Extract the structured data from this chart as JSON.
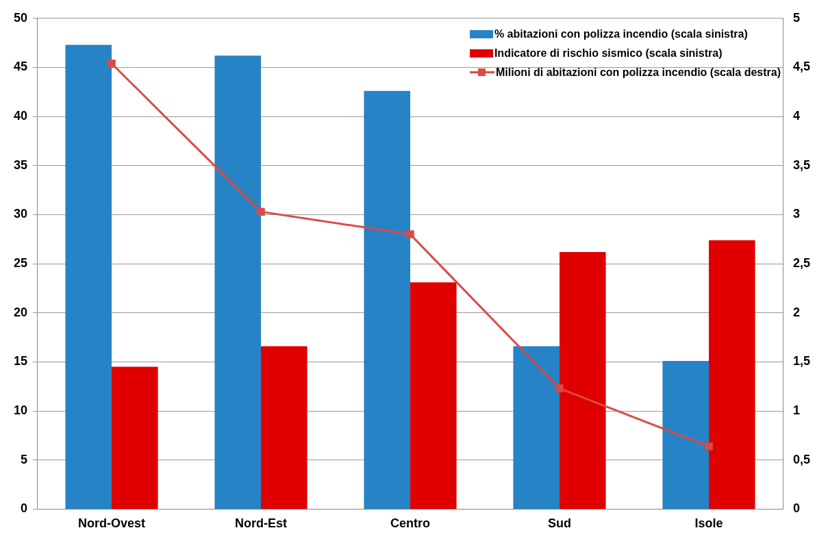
{
  "chart_data": {
    "type": "bar",
    "categories": [
      "Nord-Ovest",
      "Nord-Est",
      "Centro",
      "Sud",
      "Isole"
    ],
    "series": [
      {
        "name": "% abitazioni con polizza incendio (scala sinistra)",
        "color": "#2683c6",
        "values": [
          47.3,
          46.2,
          42.6,
          16.6,
          15.1
        ]
      },
      {
        "name": "Indicatore di rischio sismico (scala sinistra)",
        "color": "#e00000",
        "values": [
          14.5,
          16.6,
          23.1,
          26.2,
          27.4
        ]
      },
      {
        "name": "Milioni di abitazioni con polizza incendio (scala destra)",
        "color": "#db4a45",
        "type": "line",
        "axis": "y2",
        "values": [
          4.54,
          3.03,
          2.8,
          1.23,
          0.64
        ]
      }
    ],
    "ylim": [
      0,
      50
    ],
    "yticks": [
      0,
      5,
      10,
      15,
      20,
      25,
      30,
      35,
      40,
      45,
      50
    ],
    "y2lim": [
      0,
      5
    ],
    "y2ticks": [
      0,
      {
        "value": 0.5,
        "label": "0,5"
      },
      1,
      {
        "value": 1.5,
        "label": "1,5"
      },
      2,
      {
        "value": 2.5,
        "label": "2,5"
      },
      3,
      {
        "value": 3.5,
        "label": "3,5"
      },
      4,
      {
        "value": 4.5,
        "label": "4,5"
      },
      5
    ],
    "grid": "y",
    "legend": "top right",
    "marker": "square",
    "line_style": "solid"
  }
}
